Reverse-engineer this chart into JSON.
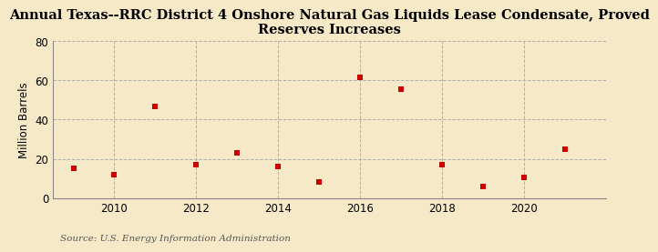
{
  "title": "Annual Texas--RRC District 4 Onshore Natural Gas Liquids Lease Condensate, Proved\nReserves Increases",
  "ylabel": "Million Barrels",
  "source": "Source: U.S. Energy Information Administration",
  "years": [
    2009,
    2010,
    2011,
    2012,
    2013,
    2014,
    2015,
    2016,
    2017,
    2018,
    2019,
    2020,
    2021
  ],
  "values": [
    15.0,
    12.0,
    46.5,
    17.0,
    23.0,
    16.0,
    8.0,
    61.5,
    55.5,
    17.0,
    6.0,
    10.5,
    25.0
  ],
  "marker_color": "#cc0000",
  "marker_size": 5,
  "marker_style": "s",
  "background_color": "#f5e9c8",
  "plot_bg_color": "#f5e9c8",
  "grid_color": "#b0b0b0",
  "xlim": [
    2008.5,
    2022.0
  ],
  "ylim": [
    0,
    80
  ],
  "yticks": [
    0,
    20,
    40,
    60,
    80
  ],
  "xticks": [
    2010,
    2012,
    2014,
    2016,
    2018,
    2020
  ],
  "title_fontsize": 10.5,
  "label_fontsize": 8.5,
  "source_fontsize": 7.5,
  "tick_fontsize": 8.5
}
